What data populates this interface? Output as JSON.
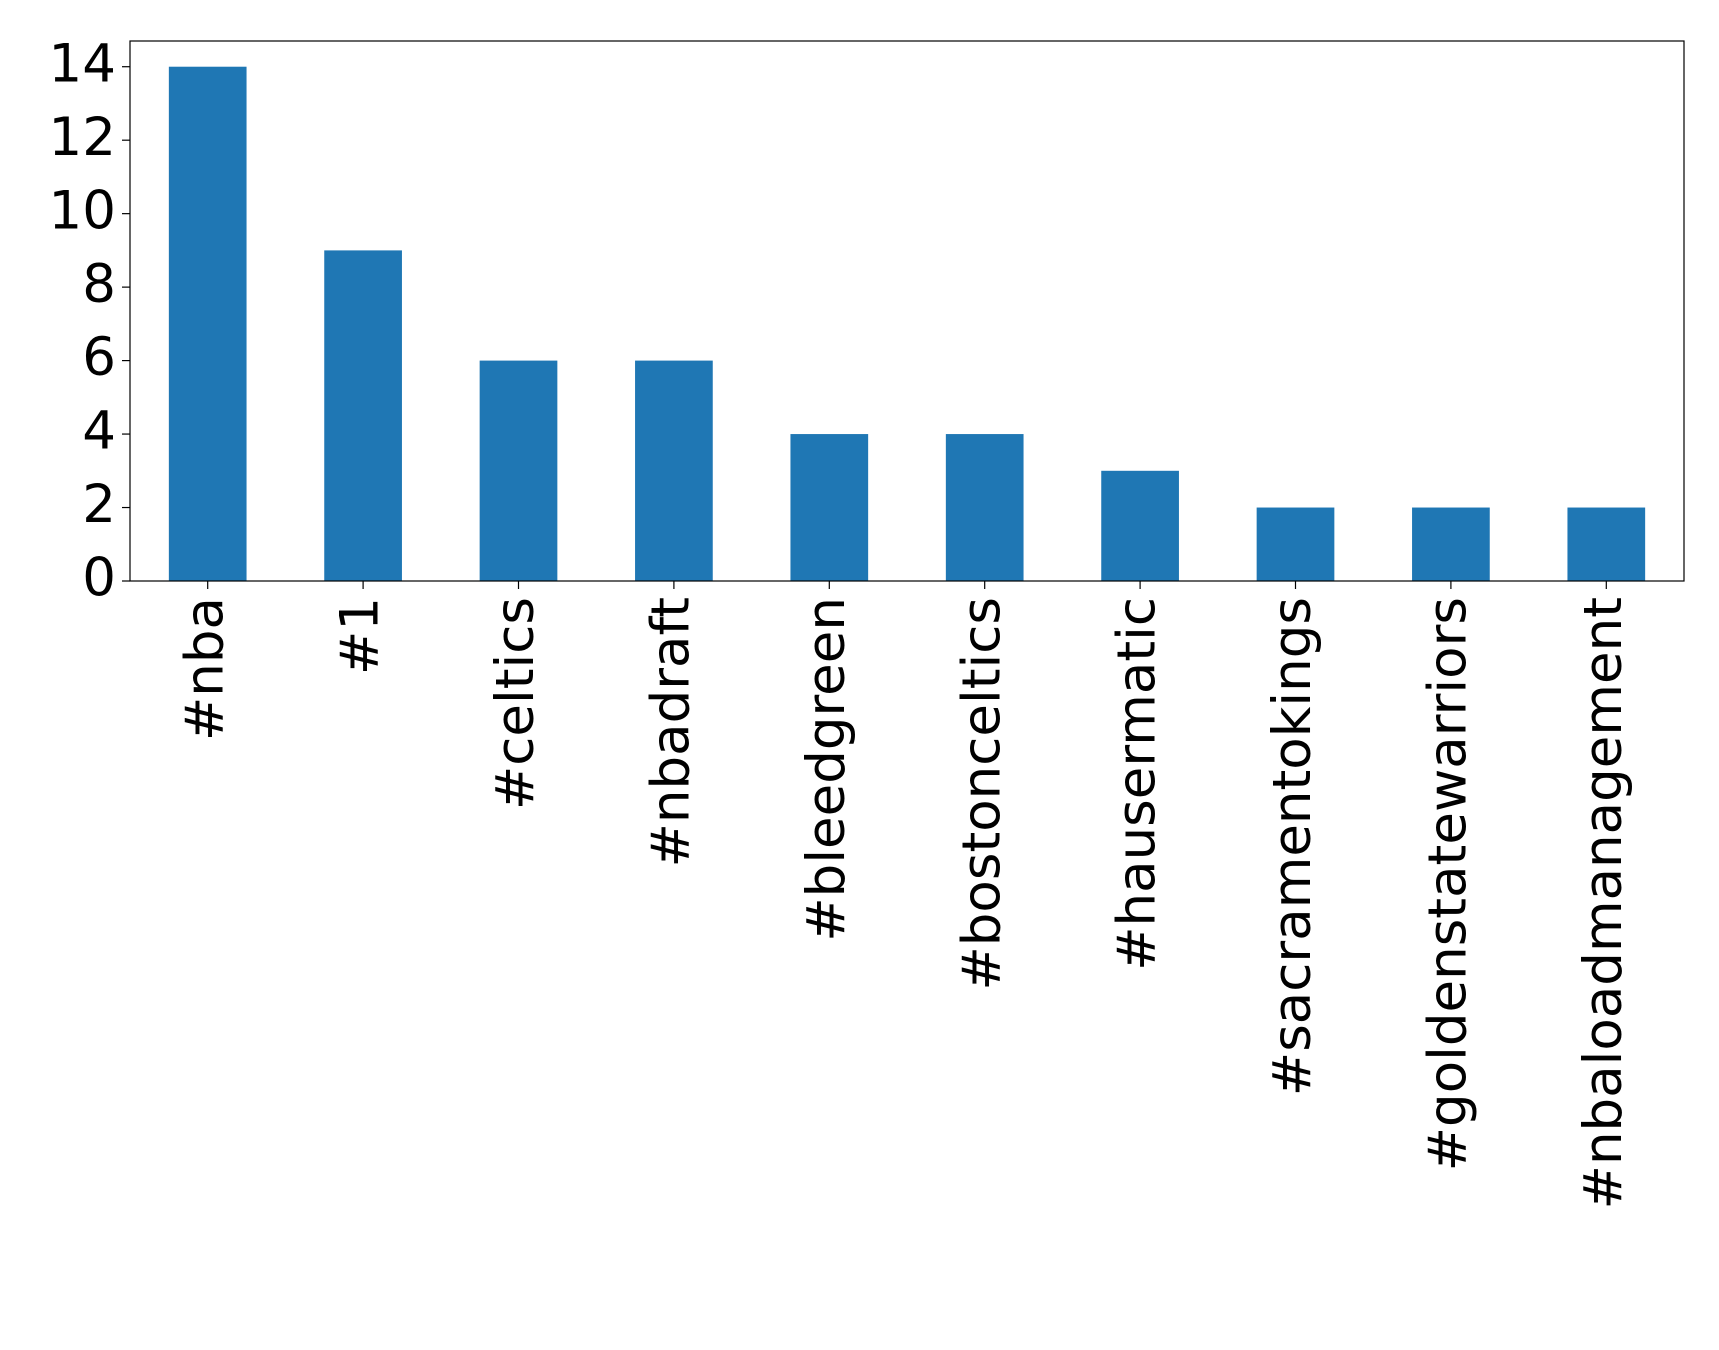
{
  "chart_data": {
    "type": "bar",
    "categories": [
      "#nba",
      "#1",
      "#celtics",
      "#nbadraft",
      "#bleedgreen",
      "#bostonceltics",
      "#hausermatic",
      "#sacramentokings",
      "#goldenstatewarriors",
      "#nbaloadmanagement"
    ],
    "values": [
      14,
      9,
      6,
      6,
      4,
      4,
      3,
      2,
      2,
      2
    ],
    "color": "#1f77b4",
    "ylim": [
      0,
      14.7
    ],
    "yticks": [
      0,
      2,
      4,
      6,
      8,
      10,
      12,
      14
    ],
    "grid": false
  }
}
